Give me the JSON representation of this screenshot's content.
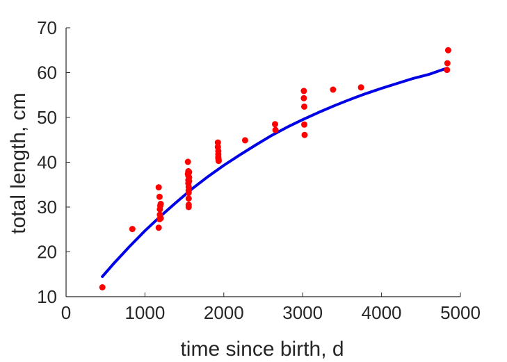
{
  "chart_data": {
    "type": "scatter",
    "xlabel": "time since birth, d",
    "ylabel": "total length, cm",
    "xlim": [
      0,
      5000
    ],
    "ylim": [
      10,
      70
    ],
    "xticks": [
      "0",
      "1000",
      "2000",
      "3000",
      "4000",
      "5000"
    ],
    "yticks": [
      "10",
      "20",
      "30",
      "40",
      "50",
      "60",
      "70"
    ],
    "grid": false,
    "legend": "none",
    "colors": {
      "points": "#ff0000",
      "curve": "#0000e6",
      "axis": "#262626"
    },
    "series": [
      {
        "kind": "points",
        "x": [
          460,
          840,
          1175,
          1175,
          1185,
          1185,
          1190,
          1190,
          1195,
          1200,
          1200,
          1545,
          1545,
          1550,
          1550,
          1550,
          1550,
          1555,
          1555,
          1555,
          1555,
          1555,
          1555,
          1560,
          1560,
          1560,
          1925,
          1925,
          1930,
          1930,
          1930,
          1930,
          1935,
          1935,
          2270,
          2650,
          2655,
          3015,
          3015,
          3020,
          3020,
          3025,
          3385,
          3740,
          4830,
          4835,
          4845
        ],
        "y": [
          12.1,
          25.1,
          34.4,
          25.4,
          32.3,
          27.3,
          28.3,
          29.5,
          30.3,
          30.7,
          27.5,
          40.1,
          37.4,
          38.0,
          37.0,
          36.0,
          35.3,
          34.5,
          33.7,
          33.2,
          31.9,
          30.5,
          30.0,
          37.8,
          36.6,
          35.8,
          44.4,
          43.4,
          42.5,
          41.8,
          41.2,
          40.9,
          40.5,
          40.3,
          44.9,
          48.5,
          47.2,
          55.9,
          54.3,
          52.4,
          48.4,
          46.1,
          56.2,
          56.7,
          60.6,
          62.1,
          65.0
        ]
      },
      {
        "kind": "fitted-curve",
        "x": [
          460,
          600,
          800,
          1000,
          1200,
          1400,
          1600,
          1800,
          2000,
          2200,
          2400,
          2600,
          2800,
          3000,
          3200,
          3400,
          3600,
          3800,
          4000,
          4200,
          4400,
          4600,
          4830
        ],
        "y": [
          14.5,
          17.3,
          21.1,
          24.7,
          28.0,
          31.1,
          34.1,
          36.8,
          39.3,
          41.6,
          43.8,
          45.9,
          47.8,
          49.5,
          51.1,
          52.6,
          54.0,
          55.3,
          56.5,
          57.6,
          58.7,
          59.6,
          61.0
        ]
      }
    ]
  }
}
